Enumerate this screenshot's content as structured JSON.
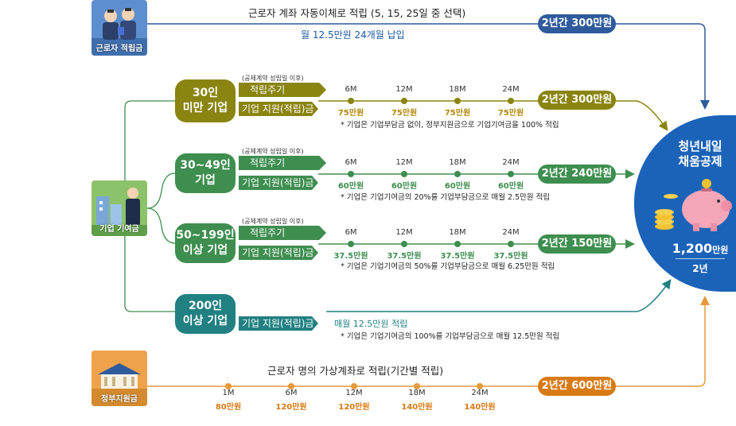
{
  "colors": {
    "navy": "#2f5b9c",
    "olive": "#8a8410",
    "green": "#3e8e4f",
    "teal": "#218082",
    "orange": "#e8993a",
    "darkorange": "#d87a14",
    "blue": "#1b58a6"
  },
  "worker": {
    "tile_label": "근로자 적립금",
    "title": "근로자 계좌 자동이체로 적립 (5, 15, 25일 중 선택)",
    "subtitle": "월 12.5만원 24개월 납입",
    "total": "2년간 300만원"
  },
  "company": {
    "tile_label": "기업 기여금"
  },
  "tiers": [
    {
      "name": "30인\n미만 기업",
      "small_note": "(공제계약 성립일 이후)",
      "cycle_label": "적립주기",
      "support_label": "기업 지원(적립)금",
      "months": [
        "6M",
        "12M",
        "18M",
        "24M"
      ],
      "amounts": [
        "75만원",
        "75만원",
        "75만원",
        "75만원"
      ],
      "note": "* 기업은 기업부담금 없이, 정부지원금으로 기업기여금을 100% 적립",
      "total": "2년간 300만원"
    },
    {
      "name": "30~49인\n기업",
      "small_note": "(공제계약 성립일 이후)",
      "cycle_label": "적립주기",
      "support_label": "기업 지원(적립)금",
      "months": [
        "6M",
        "12M",
        "18M",
        "24M"
      ],
      "amounts": [
        "60만원",
        "60만원",
        "60만원",
        "60만원"
      ],
      "note": "* 기업은 기업기여금의 20%를 기업부담금으로 매월 2.5만원 적립",
      "total": "2년간 240만원"
    },
    {
      "name": "50~199인\n이상 기업",
      "small_note": "(공제계약 성립일 이후)",
      "cycle_label": "적립주기",
      "support_label": "기업 지원(적립)금",
      "months": [
        "6M",
        "12M",
        "18M",
        "24M"
      ],
      "amounts": [
        "37.5만원",
        "37.5만원",
        "37.5만원",
        "37.5만원"
      ],
      "note": "* 기업은 기업기여금의 50%를 기업부담금으로 매월 6.25만원 적립",
      "total": "2년간 150만원"
    }
  ],
  "big_company": {
    "name": "200인\n이상 기업",
    "support_label": "기업 지원(적립)금",
    "monthly": "매월 12.5만원 적립",
    "note": "* 기업은 기업기여금의 100%를 기업부담금으로 매월 12.5만원 적립"
  },
  "government": {
    "tile_label": "정부지원금",
    "title": "근로자 명의 가상계좌로 적립(기간별 적립)",
    "months": [
      "1M",
      "6M",
      "12M",
      "18M",
      "24M"
    ],
    "amounts": [
      "80만원",
      "120만원",
      "120만원",
      "140만원",
      "140만원"
    ],
    "total": "2년간 600만원"
  },
  "result": {
    "title": "청년내일\n채움공제",
    "amount": "1,200",
    "unit": "만원",
    "period": "2년"
  }
}
